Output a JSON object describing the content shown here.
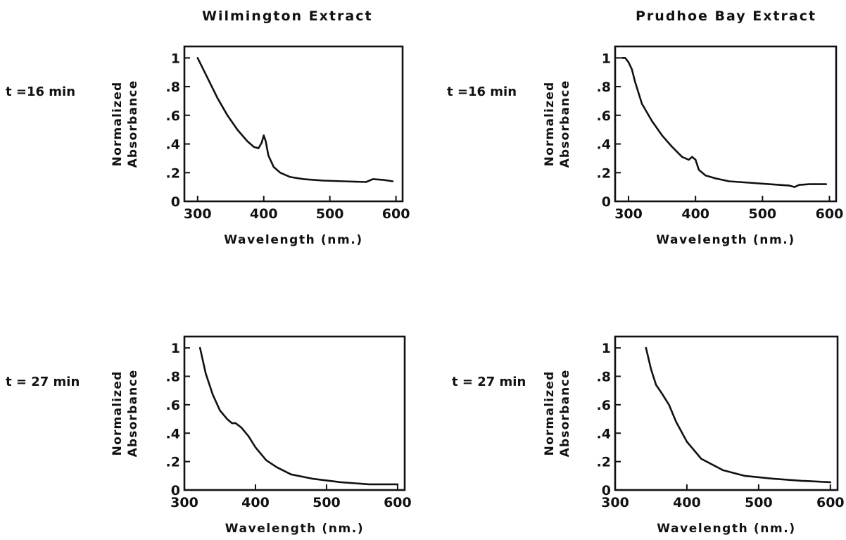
{
  "column_titles": [
    "Wilmington Extract",
    "Prudhoe Bay Extract"
  ],
  "row_labels": [
    "t =16 min",
    "t = 27 min"
  ],
  "ylabel_line1": "Normalized",
  "ylabel_line2": "Absorbance",
  "xlabel": "Wavelength (nm.)",
  "chart_data": [
    {
      "type": "line",
      "panel": "Wilmington Extract, t =16 min",
      "xlabel": "Wavelength (nm.)",
      "ylabel": "Normalized Absorbance",
      "xlim": [
        280,
        610
      ],
      "ylim": [
        0,
        1.08
      ],
      "xticks": [
        300,
        400,
        500,
        600
      ],
      "xtick_labels": [
        "300",
        "400",
        "500",
        "600"
      ],
      "yticks": [
        0,
        0.2,
        0.4,
        0.6,
        0.8,
        1
      ],
      "ytick_labels": [
        "0",
        ".2",
        ".4",
        ".6",
        ".8",
        "1"
      ],
      "series": [
        {
          "x": [
            300,
            315,
            330,
            345,
            360,
            375,
            385,
            392,
            397,
            400,
            403,
            407,
            415,
            425,
            440,
            460,
            490,
            520,
            555,
            565,
            580,
            595
          ],
          "y": [
            1.0,
            0.86,
            0.72,
            0.6,
            0.5,
            0.42,
            0.38,
            0.37,
            0.41,
            0.46,
            0.42,
            0.32,
            0.24,
            0.2,
            0.17,
            0.155,
            0.145,
            0.14,
            0.135,
            0.155,
            0.15,
            0.14
          ]
        }
      ]
    },
    {
      "type": "line",
      "panel": "Prudhoe Bay Extract, t =16 min",
      "xlabel": "Wavelength (nm.)",
      "ylabel": "Normalized Absorbance",
      "xlim": [
        280,
        610
      ],
      "ylim": [
        0,
        1.08
      ],
      "xticks": [
        300,
        400,
        500,
        600
      ],
      "xtick_labels": [
        "300",
        "400",
        "500",
        "600"
      ],
      "yticks": [
        0,
        0.2,
        0.4,
        0.6,
        0.8,
        1
      ],
      "ytick_labels": [
        "0",
        ".2",
        ".4",
        ".6",
        ".8",
        "1"
      ],
      "series": [
        {
          "x": [
            290,
            295,
            300,
            305,
            310,
            320,
            335,
            350,
            365,
            380,
            390,
            395,
            400,
            405,
            415,
            430,
            450,
            480,
            510,
            540,
            548,
            555,
            570,
            595
          ],
          "y": [
            1.0,
            1.0,
            0.97,
            0.92,
            0.83,
            0.68,
            0.56,
            0.46,
            0.38,
            0.31,
            0.29,
            0.31,
            0.29,
            0.22,
            0.18,
            0.16,
            0.14,
            0.13,
            0.12,
            0.11,
            0.1,
            0.115,
            0.12,
            0.12
          ]
        }
      ]
    },
    {
      "type": "line",
      "panel": "Wilmington Extract, t = 27 min",
      "xlabel": "Wavelength (nm.)",
      "ylabel": "Normalized Absorbance",
      "xlim": [
        300,
        610
      ],
      "ylim": [
        0,
        1.08
      ],
      "xticks": [
        300,
        400,
        500,
        600
      ],
      "xtick_labels": [
        "300",
        "400",
        "500",
        "600"
      ],
      "yticks": [
        0,
        0.2,
        0.4,
        0.6,
        0.8,
        1
      ],
      "ytick_labels": [
        "0",
        ".2",
        ".4",
        ".6",
        ".8",
        "1"
      ],
      "series": [
        {
          "x": [
            322,
            330,
            340,
            350,
            360,
            367,
            372,
            380,
            390,
            400,
            415,
            430,
            450,
            480,
            520,
            560,
            600
          ],
          "y": [
            1.0,
            0.82,
            0.67,
            0.56,
            0.5,
            0.47,
            0.47,
            0.44,
            0.38,
            0.3,
            0.21,
            0.16,
            0.11,
            0.08,
            0.055,
            0.04,
            0.04
          ]
        }
      ]
    },
    {
      "type": "line",
      "panel": "Prudhoe Bay Extract, t = 27 min",
      "xlabel": "Wavelength (nm.)",
      "ylabel": "Normalized Absorbance",
      "xlim": [
        300,
        610
      ],
      "ylim": [
        0,
        1.08
      ],
      "xticks": [
        300,
        400,
        500,
        600
      ],
      "xtick_labels": [
        "300",
        "400",
        "500",
        "600"
      ],
      "yticks": [
        0,
        0.2,
        0.4,
        0.6,
        0.8,
        1
      ],
      "ytick_labels": [
        "0",
        ".2",
        ".4",
        ".6",
        ".8",
        "1"
      ],
      "series": [
        {
          "x": [
            343,
            350,
            357,
            365,
            375,
            385,
            400,
            420,
            450,
            480,
            520,
            560,
            600
          ],
          "y": [
            1.0,
            0.85,
            0.74,
            0.68,
            0.6,
            0.48,
            0.34,
            0.22,
            0.14,
            0.1,
            0.08,
            0.065,
            0.055
          ]
        }
      ]
    }
  ]
}
